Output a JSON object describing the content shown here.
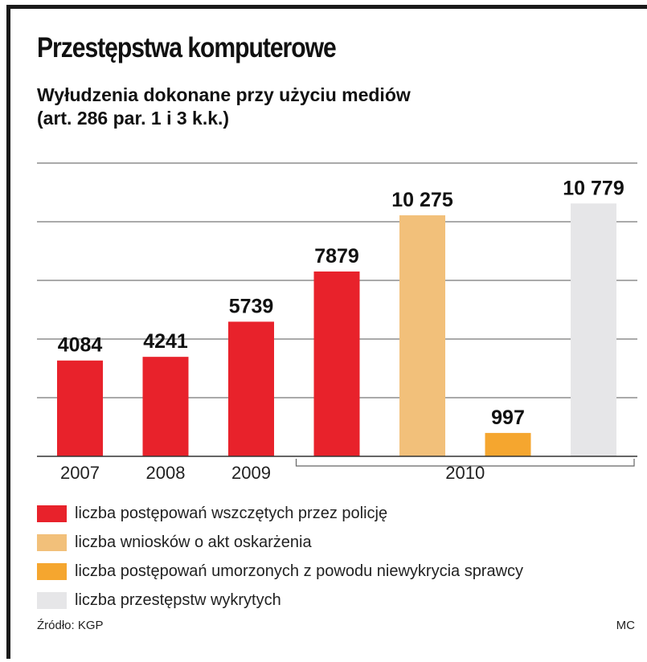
{
  "title": "Przestępstwa komputerowe",
  "subtitle_line1": "Wyłudzenia dokonane przy użyciu mediów",
  "subtitle_line2": "(art. 286 par. 1 i 3 k.k.)",
  "colors": {
    "red": "#e8222b",
    "light_orange": "#f2c07a",
    "orange": "#f5a62f",
    "light_gray": "#e6e6e8",
    "grid": "#555555"
  },
  "chart_data": {
    "type": "bar",
    "title": "Przestępstwa komputerowe",
    "subtitle": "Wyłudzenia dokonane przy użyciu mediów (art. 286 par. 1 i 3 k.k.)",
    "ylim": [
      0,
      12500
    ],
    "grid": true,
    "gridlines": [
      2500,
      5000,
      7500,
      10000,
      12500
    ],
    "bars": [
      {
        "category": "2007",
        "value": 4084,
        "label": "4084",
        "series": "liczba postępowań wszczętych przez policję",
        "color": "#e8222b"
      },
      {
        "category": "2008",
        "value": 4241,
        "label": "4241",
        "series": "liczba postępowań wszczętych przez policję",
        "color": "#e8222b"
      },
      {
        "category": "2009",
        "value": 5739,
        "label": "5739",
        "series": "liczba postępowań wszczętych przez policję",
        "color": "#e8222b"
      },
      {
        "category": "2010",
        "value": 7879,
        "label": "7879",
        "series": "liczba postępowań wszczętych przez policję",
        "color": "#e8222b"
      },
      {
        "category": "2010",
        "value": 10275,
        "label": "10 275",
        "series": "liczba wniosków o akt oskarżenia",
        "color": "#f2c07a"
      },
      {
        "category": "2010",
        "value": 997,
        "label": "997",
        "series": "liczba postępowań umorzonych z powodu niewykrycia sprawcy",
        "color": "#f5a62f"
      },
      {
        "category": "2010",
        "value": 10779,
        "label": "10 779",
        "series": "liczba przestępstw wykrytych",
        "color": "#e6e6e8"
      }
    ],
    "axis_labels": [
      {
        "text": "2007",
        "bars": [
          0
        ]
      },
      {
        "text": "2008",
        "bars": [
          1
        ]
      },
      {
        "text": "2009",
        "bars": [
          2
        ]
      },
      {
        "text": "2010",
        "bars": [
          3,
          4,
          5,
          6
        ],
        "bracket": true
      }
    ]
  },
  "legend": [
    {
      "label": "liczba postępowań wszczętych przez policję",
      "color": "#e8222b"
    },
    {
      "label": "liczba wniosków o akt oskarżenia",
      "color": "#f2c07a"
    },
    {
      "label": "liczba postępowań umorzonych z powodu niewykrycia sprawcy",
      "color": "#f5a62f"
    },
    {
      "label": "liczba przestępstw wykrytych",
      "color": "#e6e6e8"
    }
  ],
  "source": "Źródło: KGP",
  "credit": "MC"
}
